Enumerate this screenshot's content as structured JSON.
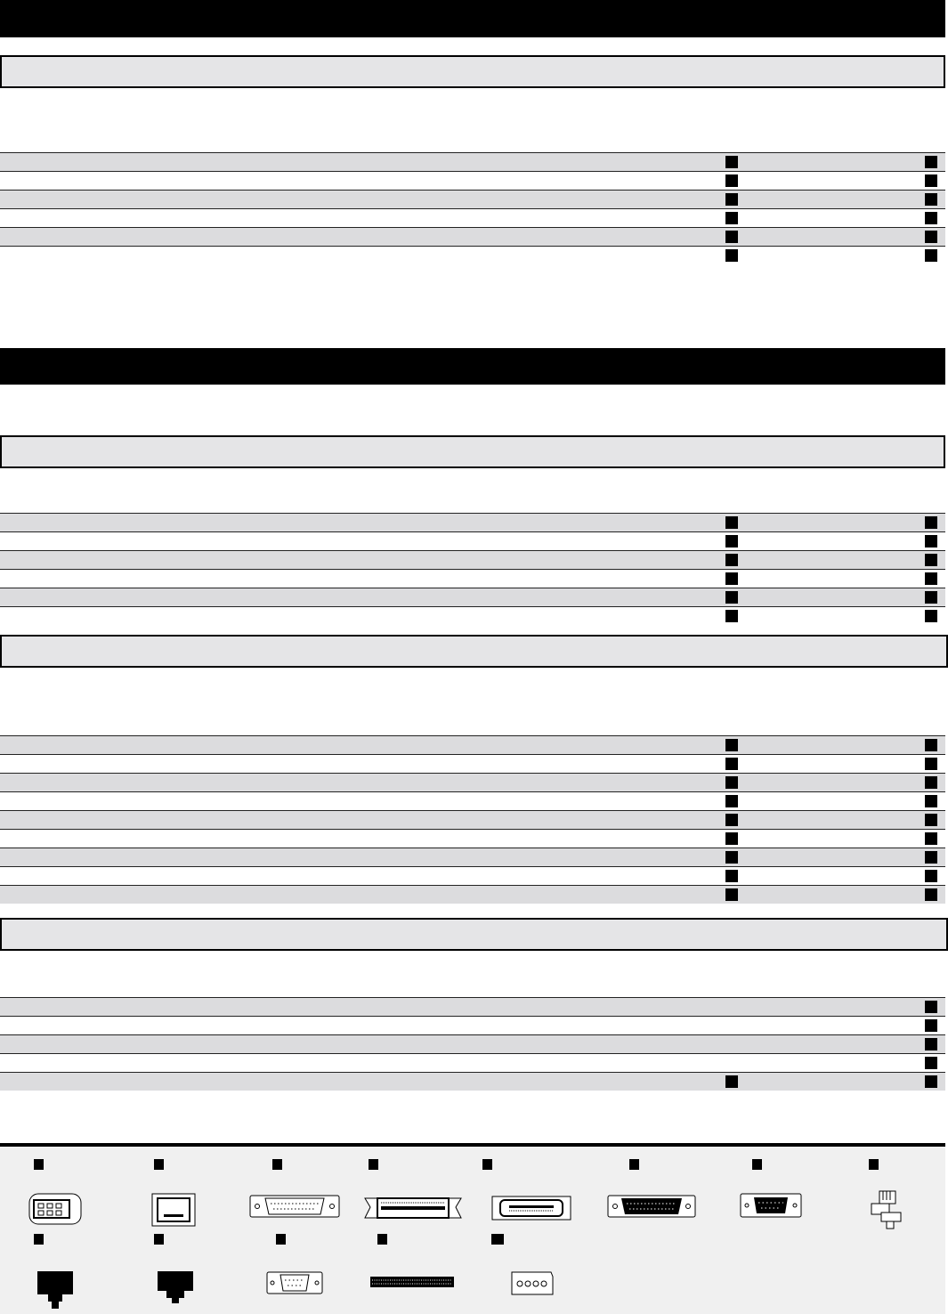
{
  "colors": {
    "header_bar": "#000000",
    "section_box": "#e5e5e7",
    "row_shaded": "#dcdcde",
    "marker": "#000000",
    "panel": "#f0f0f0"
  },
  "tables": [
    {
      "rows": [
        {
          "shaded": true,
          "left": true,
          "right": true
        },
        {
          "shaded": false,
          "left": true,
          "right": true
        },
        {
          "shaded": true,
          "left": true,
          "right": true
        },
        {
          "shaded": false,
          "left": true,
          "right": true
        },
        {
          "shaded": true,
          "left": true,
          "right": true
        },
        {
          "shaded": false,
          "left": true,
          "right": true
        }
      ]
    },
    {
      "rows": [
        {
          "shaded": true,
          "left": true,
          "right": true
        },
        {
          "shaded": false,
          "left": true,
          "right": true
        },
        {
          "shaded": true,
          "left": true,
          "right": true
        },
        {
          "shaded": false,
          "left": true,
          "right": true
        },
        {
          "shaded": true,
          "left": true,
          "right": true
        },
        {
          "shaded": false,
          "left": true,
          "right": true
        }
      ]
    },
    {
      "rows": [
        {
          "shaded": true,
          "left": true,
          "right": true
        },
        {
          "shaded": false,
          "left": true,
          "right": true
        },
        {
          "shaded": true,
          "left": true,
          "right": true
        },
        {
          "shaded": false,
          "left": true,
          "right": true
        },
        {
          "shaded": true,
          "left": true,
          "right": true
        },
        {
          "shaded": false,
          "left": true,
          "right": true
        },
        {
          "shaded": true,
          "left": true,
          "right": true
        },
        {
          "shaded": false,
          "left": true,
          "right": true
        },
        {
          "shaded": true,
          "left": true,
          "right": true
        }
      ]
    },
    {
      "rows": [
        {
          "shaded": true,
          "left": false,
          "right": true
        },
        {
          "shaded": false,
          "left": false,
          "right": true
        },
        {
          "shaded": true,
          "left": false,
          "right": true
        },
        {
          "shaded": false,
          "left": false,
          "right": true
        },
        {
          "shaded": true,
          "left": true,
          "right": true
        }
      ]
    }
  ],
  "connectors_row1": [
    "firewire-port-icon",
    "ethernet-port-icon",
    "db25-port-icon",
    "scsi-50-port-icon",
    "hd50-scsi-port-icon",
    "db25-male-port-icon",
    "db9-port-icon",
    "rj11-plug-icon"
  ],
  "connectors_row2": [
    "rj45-plug-icon",
    "rj11-jack-icon",
    "db9-female-port-icon",
    "edge-connector-icon",
    "power-molex-icon"
  ]
}
